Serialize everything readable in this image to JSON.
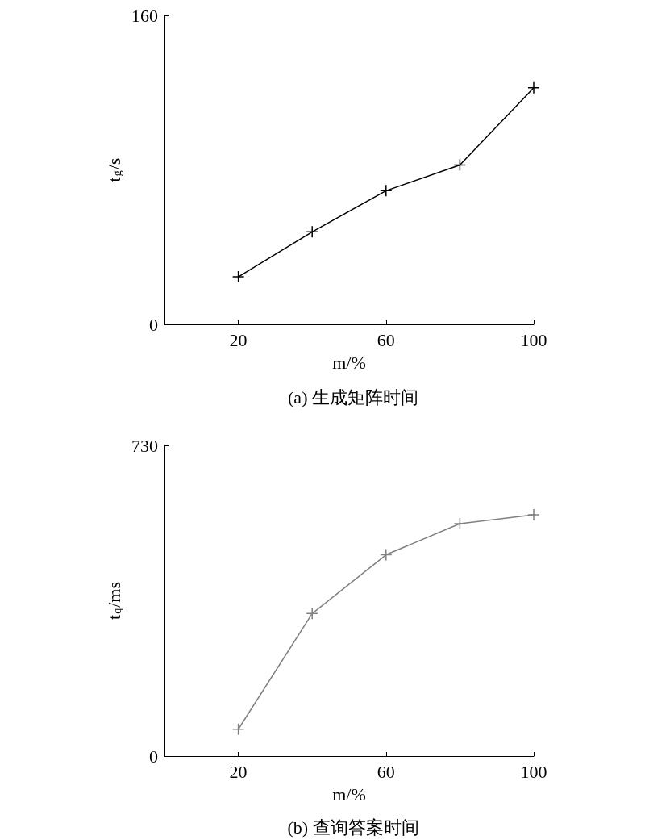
{
  "chart_data": [
    {
      "type": "line",
      "title": "(a) 生成矩阵时间",
      "xlabel": "m/%",
      "ylabel": "t$_{g}$/s",
      "x": [
        20,
        40,
        60,
        80,
        100
      ],
      "series": [
        {
          "color": "#000000",
          "values": [
            24.6,
            47.9,
            69.2,
            82.5,
            122.5
          ]
        }
      ],
      "xlim": [
        0,
        100
      ],
      "xticks": [
        20,
        60,
        100
      ],
      "ylim": [
        0,
        160
      ],
      "yticks": [
        0,
        160
      ],
      "grid": false,
      "marker": "cross",
      "line_style": "solid"
    },
    {
      "type": "line",
      "title": "(b) 查询答案时间",
      "xlabel": "m/%",
      "ylabel": "t$_{q}$/ms",
      "x": [
        20,
        40,
        60,
        80,
        100
      ],
      "series": [
        {
          "color": "#808080",
          "values": [
            63,
            335,
            473,
            546,
            567
          ]
        }
      ],
      "xlim": [
        0,
        100
      ],
      "xticks": [
        20,
        60,
        100
      ],
      "ylim": [
        0,
        730
      ],
      "yticks": [
        0,
        730
      ],
      "grid": false,
      "marker": "cross",
      "line_style": "solid"
    }
  ]
}
